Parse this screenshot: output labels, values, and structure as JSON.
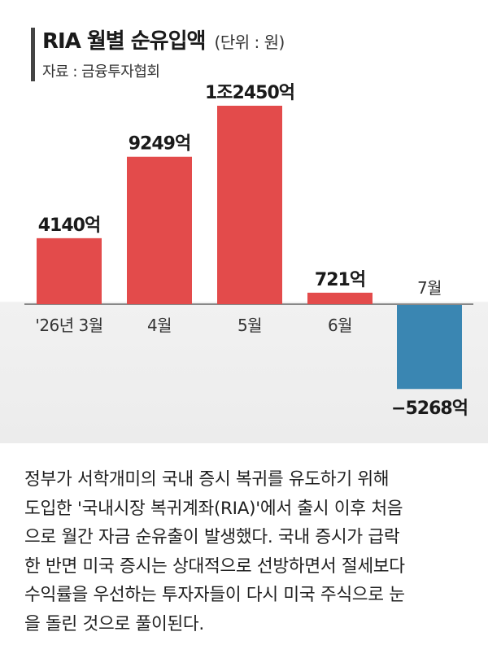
{
  "header": {
    "title": "RIA 월별 순유입액",
    "unit": "(단위 : 원)",
    "source": "자료 : 금융투자협회"
  },
  "colors": {
    "positive_bar": "#e34b4b",
    "negative_bar": "#3a86b2",
    "axis_line": "#666666",
    "title_bar": "#444444"
  },
  "chart_data": {
    "type": "bar",
    "title": "RIA 월별 순유입액",
    "unit": "원",
    "categories": [
      "'26년 3월",
      "4월",
      "5월",
      "6월",
      "7월"
    ],
    "values": [
      4140,
      9249,
      12450,
      721,
      -5268
    ],
    "value_unit": "억",
    "data_labels": [
      "4140억",
      "9249억",
      "1조2450억",
      "721억",
      "−5268억"
    ],
    "bar_colors": [
      "#e34b4b",
      "#e34b4b",
      "#e34b4b",
      "#e34b4b",
      "#3a86b2"
    ],
    "ylim": [
      -5268,
      12450
    ],
    "grid": false,
    "legend": "none"
  },
  "article": {
    "lines": [
      "정부가 서학개미의 국내 증시 복귀를 유도하기 위해",
      "도입한 '국내시장 복귀계좌(RIA)'에서 출시 이후 처음",
      "으로 월간 자금 순유출이 발생했다. 국내 증시가 급락",
      "한 반면 미국 증시는 상대적으로 선방하면서 절세보다",
      "수익률을 우선하는 투자자들이 다시 미국 주식으로 눈",
      "을 돌린 것으로 풀이된다."
    ]
  }
}
